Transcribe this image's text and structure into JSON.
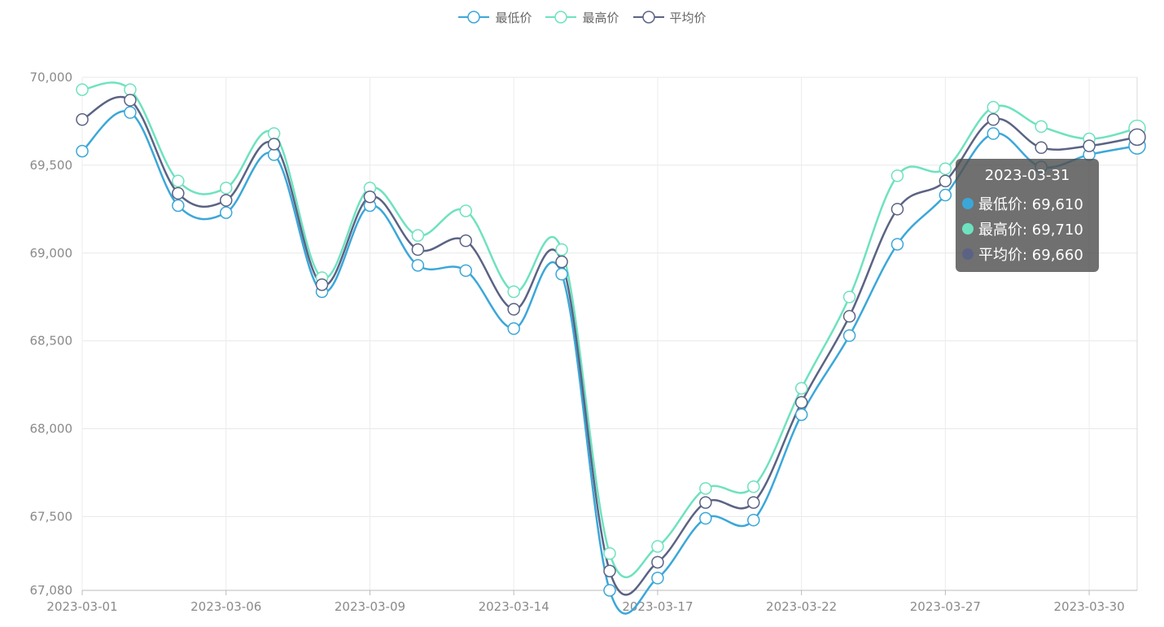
{
  "legend": [
    {
      "label": "最低价",
      "color": "#3ba7d9",
      "icon": "line-circle-icon"
    },
    {
      "label": "最高价",
      "color": "#6ee2bf",
      "icon": "line-circle-icon"
    },
    {
      "label": "平均价",
      "color": "#5b6384",
      "icon": "line-circle-icon"
    }
  ],
  "tooltip": {
    "title": "2023-03-31",
    "rows": [
      {
        "label": "最低价: 69,610",
        "color": "#3ba7d9"
      },
      {
        "label": "最高价: 69,710",
        "color": "#6ee2bf"
      },
      {
        "label": "平均价: 69,660",
        "color": "#5b6384"
      }
    ]
  },
  "chart_data": {
    "type": "line",
    "smooth": true,
    "x": [
      "2023-03-01",
      "2023-03-02",
      "2023-03-03",
      "2023-03-06",
      "2023-03-07",
      "2023-03-08",
      "2023-03-09",
      "2023-03-10",
      "2023-03-13",
      "2023-03-14",
      "2023-03-15",
      "2023-03-16",
      "2023-03-17",
      "2023-03-20",
      "2023-03-21",
      "2023-03-22",
      "2023-03-23",
      "2023-03-24",
      "2023-03-27",
      "2023-03-28",
      "2023-03-29",
      "2023-03-30",
      "2023-03-31"
    ],
    "xticks": [
      "2023-03-01",
      "2023-03-06",
      "2023-03-09",
      "2023-03-14",
      "2023-03-17",
      "2023-03-22",
      "2023-03-27",
      "2023-03-30"
    ],
    "xtick_indices": [
      0,
      3,
      6,
      9,
      12,
      15,
      18,
      21
    ],
    "series": [
      {
        "name": "最低价",
        "color": "#3ba7d9",
        "values": [
          69580,
          69800,
          69270,
          69230,
          69560,
          68780,
          69270,
          68930,
          68900,
          68570,
          68880,
          67080,
          67150,
          67490,
          67480,
          68080,
          68530,
          69050,
          69330,
          69680,
          69490,
          69560,
          69610
        ]
      },
      {
        "name": "最高价",
        "color": "#6ee2bf",
        "values": [
          69930,
          69930,
          69410,
          69370,
          69680,
          68860,
          69370,
          69100,
          69240,
          68780,
          69020,
          67290,
          67330,
          67660,
          67670,
          68230,
          68750,
          69440,
          69480,
          69830,
          69720,
          69650,
          69710
        ]
      },
      {
        "name": "平均价",
        "color": "#5b6384",
        "values": [
          69760,
          69870,
          69340,
          69300,
          69620,
          68820,
          69320,
          69020,
          69070,
          68680,
          68950,
          67190,
          67240,
          67580,
          67580,
          68150,
          68640,
          69250,
          69410,
          69760,
          69600,
          69610,
          69660
        ]
      }
    ],
    "ylim": [
      67080,
      70000
    ],
    "yticks": [
      67080,
      67500,
      68000,
      68500,
      69000,
      69500,
      70000
    ],
    "ytick_labels": [
      "67,080",
      "67,500",
      "68,000",
      "68,500",
      "69,000",
      "69,500",
      "70,000"
    ],
    "grid": true,
    "legend_position": "top-center",
    "highlight_index": 22
  }
}
